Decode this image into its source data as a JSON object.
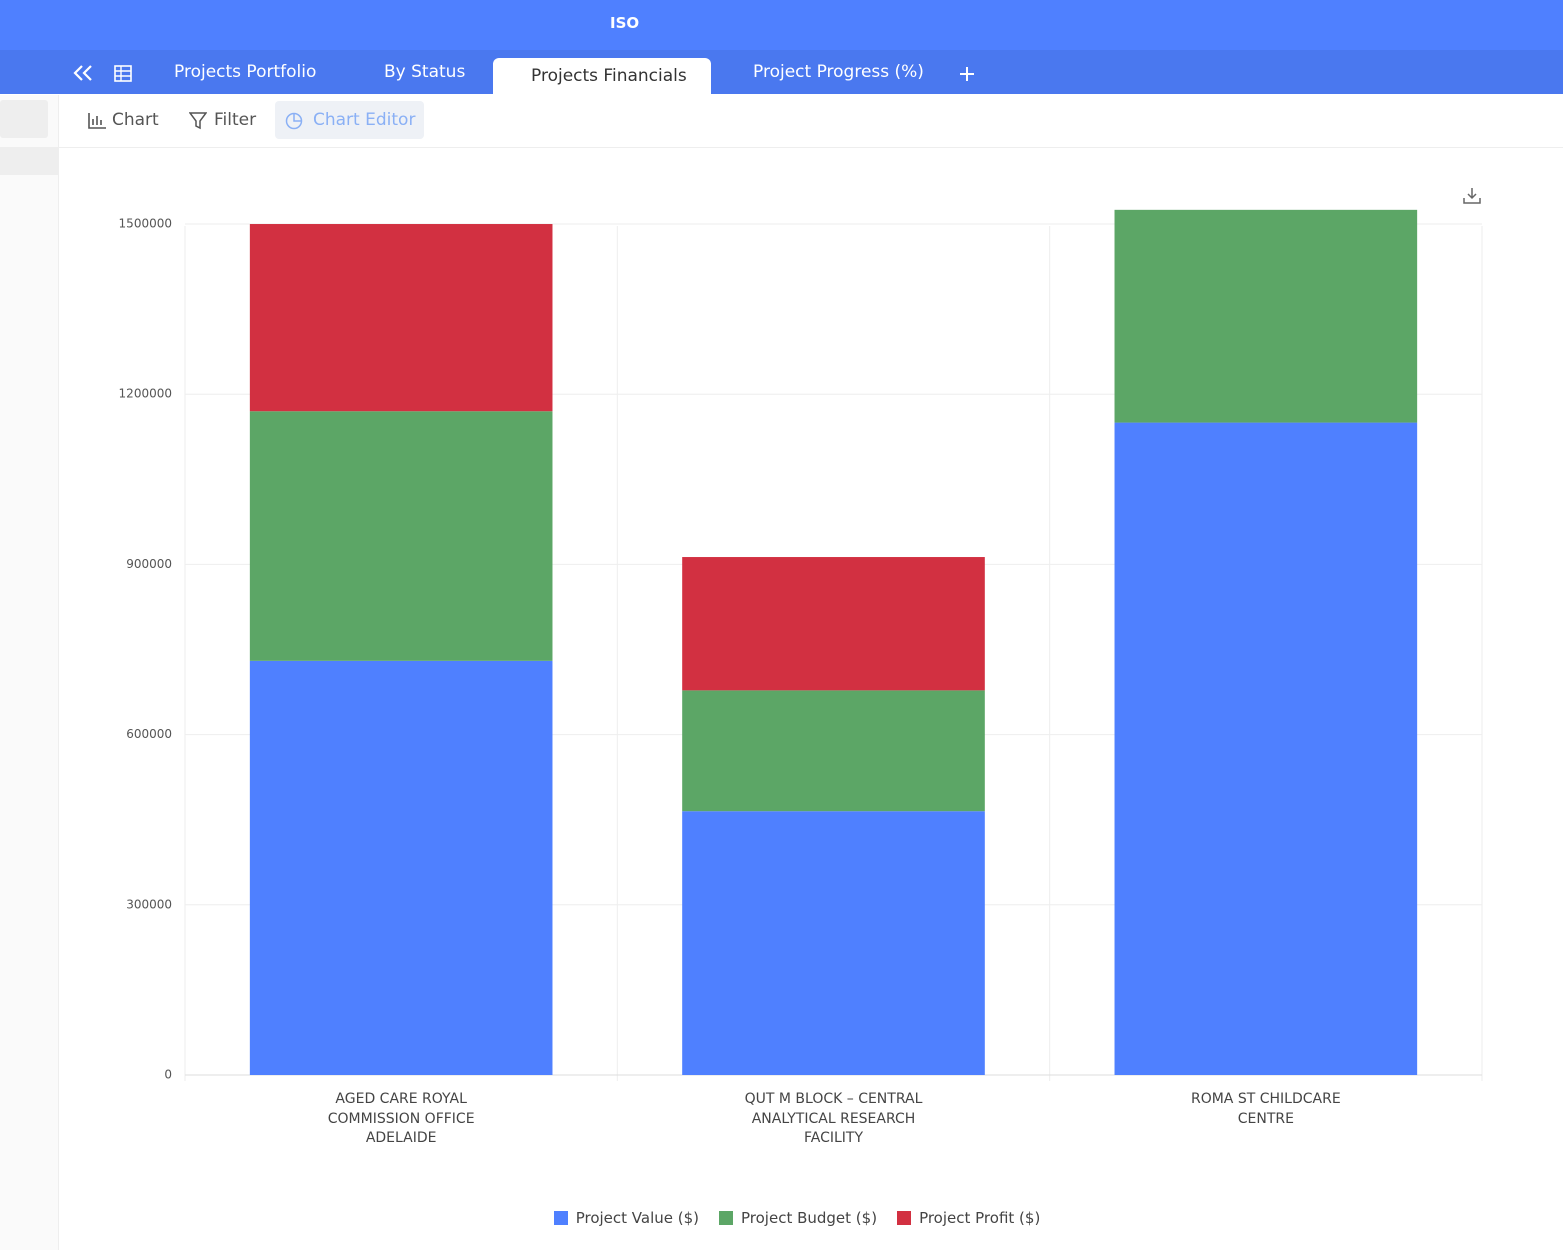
{
  "header": {
    "logo": "ISO",
    "tabs": [
      "Projects Portfolio",
      "By Status",
      "Projects Financials",
      "Project Progress (%)"
    ]
  },
  "toolbar": {
    "buttons": [
      "Chart",
      "Filter",
      "Chart Editor"
    ]
  },
  "chart_data": {
    "type": "bar",
    "stacked": true,
    "categories": [
      "AGED CARE ROYAL COMMISSION OFFICE ADELAIDE",
      "QUT M BLOCK – CENTRAL ANALYTICAL RESEARCH FACILITY",
      "ROMA ST CHILDCARE CENTRE"
    ],
    "series": [
      {
        "name": "Project Value ($)",
        "color": "#4f80ff",
        "values": [
          730000,
          465000,
          1150000
        ]
      },
      {
        "name": "Project Budget ($)",
        "color": "#5ca666",
        "values": [
          440000,
          213000,
          375000
        ]
      },
      {
        "name": "Project Profit ($)",
        "color": "#d23041",
        "values": [
          330000,
          235000,
          null
        ]
      }
    ],
    "ylim": [
      0,
      1530000
    ],
    "yticks": [
      0,
      300000,
      600000,
      900000,
      1200000,
      1500000
    ],
    "grid": true,
    "legend": "bottom"
  }
}
